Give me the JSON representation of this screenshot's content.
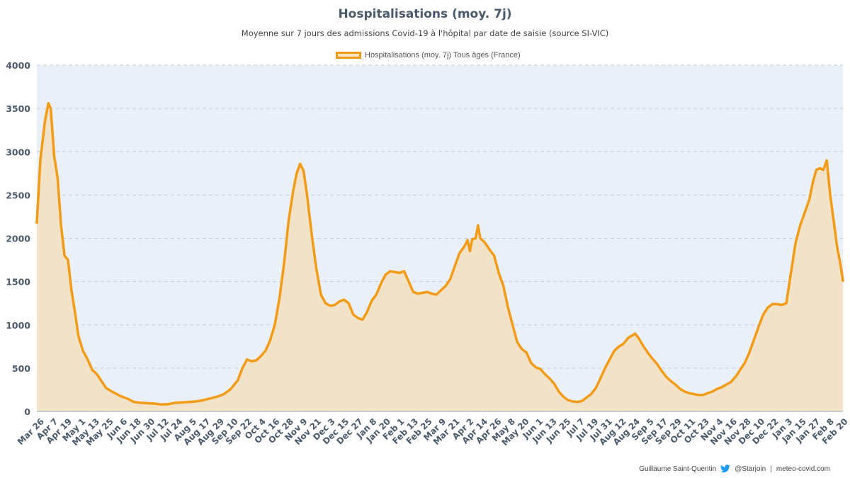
{
  "chart_data": {
    "type": "area",
    "title": "Hospitalisations (moy. 7j)",
    "subtitle": "Moyenne sur 7 jours des admissions Covid-19 à l'hôpital par date de saisie (source SI-VIC)",
    "series": [
      {
        "name": "Hospitalisations (moy. 7j) Tous âges (France)",
        "color": "#f29b16",
        "fill": "#f2e2c8",
        "points": [
          [
            "2020-03-26",
            2180
          ],
          [
            "2020-03-29",
            2900
          ],
          [
            "2020-04-02",
            3350
          ],
          [
            "2020-04-05",
            3560
          ],
          [
            "2020-04-07",
            3500
          ],
          [
            "2020-04-10",
            2950
          ],
          [
            "2020-04-13",
            2700
          ],
          [
            "2020-04-16",
            2150
          ],
          [
            "2020-04-19",
            1800
          ],
          [
            "2020-04-22",
            1750
          ],
          [
            "2020-04-25",
            1400
          ],
          [
            "2020-04-28",
            1150
          ],
          [
            "2020-05-01",
            870
          ],
          [
            "2020-05-05",
            700
          ],
          [
            "2020-05-09",
            600
          ],
          [
            "2020-05-13",
            480
          ],
          [
            "2020-05-17",
            430
          ],
          [
            "2020-05-21",
            350
          ],
          [
            "2020-05-25",
            270
          ],
          [
            "2020-05-30",
            230
          ],
          [
            "2020-06-06",
            180
          ],
          [
            "2020-06-12",
            150
          ],
          [
            "2020-06-18",
            110
          ],
          [
            "2020-06-24",
            100
          ],
          [
            "2020-06-30",
            95
          ],
          [
            "2020-07-06",
            90
          ],
          [
            "2020-07-12",
            80
          ],
          [
            "2020-07-18",
            85
          ],
          [
            "2020-07-24",
            100
          ],
          [
            "2020-07-30",
            105
          ],
          [
            "2020-08-05",
            110
          ],
          [
            "2020-08-11",
            115
          ],
          [
            "2020-08-17",
            130
          ],
          [
            "2020-08-23",
            150
          ],
          [
            "2020-08-29",
            170
          ],
          [
            "2020-09-04",
            200
          ],
          [
            "2020-09-10",
            260
          ],
          [
            "2020-09-16",
            360
          ],
          [
            "2020-09-20",
            500
          ],
          [
            "2020-09-24",
            600
          ],
          [
            "2020-09-28",
            580
          ],
          [
            "2020-10-02",
            590
          ],
          [
            "2020-10-06",
            640
          ],
          [
            "2020-10-10",
            700
          ],
          [
            "2020-10-14",
            820
          ],
          [
            "2020-10-18",
            1000
          ],
          [
            "2020-10-22",
            1300
          ],
          [
            "2020-10-26",
            1700
          ],
          [
            "2020-10-30",
            2200
          ],
          [
            "2020-11-03",
            2550
          ],
          [
            "2020-11-06",
            2750
          ],
          [
            "2020-11-09",
            2860
          ],
          [
            "2020-11-12",
            2780
          ],
          [
            "2020-11-15",
            2500
          ],
          [
            "2020-11-19",
            2050
          ],
          [
            "2020-11-23",
            1650
          ],
          [
            "2020-11-27",
            1350
          ],
          [
            "2020-12-01",
            1250
          ],
          [
            "2020-12-05",
            1220
          ],
          [
            "2020-12-09",
            1230
          ],
          [
            "2020-12-13",
            1270
          ],
          [
            "2020-12-17",
            1290
          ],
          [
            "2020-12-21",
            1250
          ],
          [
            "2020-12-25",
            1120
          ],
          [
            "2020-12-29",
            1080
          ],
          [
            "2021-01-02",
            1060
          ],
          [
            "2021-01-06",
            1150
          ],
          [
            "2021-01-10",
            1280
          ],
          [
            "2021-01-14",
            1350
          ],
          [
            "2021-01-18",
            1480
          ],
          [
            "2021-01-22",
            1580
          ],
          [
            "2021-01-26",
            1620
          ],
          [
            "2021-01-30",
            1610
          ],
          [
            "2021-02-03",
            1600
          ],
          [
            "2021-02-07",
            1620
          ],
          [
            "2021-02-11",
            1500
          ],
          [
            "2021-02-15",
            1380
          ],
          [
            "2021-02-19",
            1360
          ],
          [
            "2021-02-23",
            1370
          ],
          [
            "2021-02-27",
            1380
          ],
          [
            "2021-03-03",
            1360
          ],
          [
            "2021-03-07",
            1350
          ],
          [
            "2021-03-11",
            1400
          ],
          [
            "2021-03-15",
            1450
          ],
          [
            "2021-03-19",
            1530
          ],
          [
            "2021-03-23",
            1680
          ],
          [
            "2021-03-27",
            1830
          ],
          [
            "2021-03-31",
            1900
          ],
          [
            "2021-04-03",
            1980
          ],
          [
            "2021-04-05",
            1850
          ],
          [
            "2021-04-07",
            1990
          ],
          [
            "2021-04-10",
            2000
          ],
          [
            "2021-04-12",
            2150
          ],
          [
            "2021-04-14",
            2000
          ],
          [
            "2021-04-18",
            1950
          ],
          [
            "2021-04-22",
            1870
          ],
          [
            "2021-04-26",
            1800
          ],
          [
            "2021-04-30",
            1600
          ],
          [
            "2021-05-04",
            1450
          ],
          [
            "2021-05-08",
            1200
          ],
          [
            "2021-05-12",
            1000
          ],
          [
            "2021-05-16",
            800
          ],
          [
            "2021-05-20",
            720
          ],
          [
            "2021-05-24",
            680
          ],
          [
            "2021-05-28",
            560
          ],
          [
            "2021-06-01",
            510
          ],
          [
            "2021-06-05",
            490
          ],
          [
            "2021-06-09",
            430
          ],
          [
            "2021-06-13",
            380
          ],
          [
            "2021-06-17",
            320
          ],
          [
            "2021-06-21",
            230
          ],
          [
            "2021-06-25",
            170
          ],
          [
            "2021-06-29",
            130
          ],
          [
            "2021-07-03",
            115
          ],
          [
            "2021-07-07",
            110
          ],
          [
            "2021-07-11",
            120
          ],
          [
            "2021-07-15",
            160
          ],
          [
            "2021-07-19",
            200
          ],
          [
            "2021-07-23",
            270
          ],
          [
            "2021-07-27",
            380
          ],
          [
            "2021-07-31",
            500
          ],
          [
            "2021-08-04",
            600
          ],
          [
            "2021-08-08",
            700
          ],
          [
            "2021-08-12",
            750
          ],
          [
            "2021-08-16",
            780
          ],
          [
            "2021-08-20",
            850
          ],
          [
            "2021-08-24",
            880
          ],
          [
            "2021-08-26",
            900
          ],
          [
            "2021-08-29",
            850
          ],
          [
            "2021-09-02",
            760
          ],
          [
            "2021-09-06",
            680
          ],
          [
            "2021-09-10",
            610
          ],
          [
            "2021-09-14",
            550
          ],
          [
            "2021-09-18",
            470
          ],
          [
            "2021-09-22",
            400
          ],
          [
            "2021-09-26",
            350
          ],
          [
            "2021-09-30",
            310
          ],
          [
            "2021-10-04",
            260
          ],
          [
            "2021-10-08",
            230
          ],
          [
            "2021-10-12",
            210
          ],
          [
            "2021-10-16",
            200
          ],
          [
            "2021-10-20",
            190
          ],
          [
            "2021-10-24",
            190
          ],
          [
            "2021-10-28",
            210
          ],
          [
            "2021-11-01",
            230
          ],
          [
            "2021-11-05",
            260
          ],
          [
            "2021-11-09",
            280
          ],
          [
            "2021-11-13",
            310
          ],
          [
            "2021-11-17",
            340
          ],
          [
            "2021-11-21",
            400
          ],
          [
            "2021-11-25",
            480
          ],
          [
            "2021-11-29",
            560
          ],
          [
            "2021-12-03",
            680
          ],
          [
            "2021-12-07",
            830
          ],
          [
            "2021-12-11",
            980
          ],
          [
            "2021-12-15",
            1120
          ],
          [
            "2021-12-19",
            1200
          ],
          [
            "2021-12-23",
            1240
          ],
          [
            "2021-12-27",
            1240
          ],
          [
            "2021-12-31",
            1230
          ],
          [
            "2022-01-04",
            1250
          ],
          [
            "2022-01-08",
            1600
          ],
          [
            "2022-01-12",
            1950
          ],
          [
            "2022-01-16",
            2150
          ],
          [
            "2022-01-20",
            2300
          ],
          [
            "2022-01-24",
            2450
          ],
          [
            "2022-01-27",
            2650
          ],
          [
            "2022-01-30",
            2790
          ],
          [
            "2022-02-02",
            2810
          ],
          [
            "2022-02-05",
            2790
          ],
          [
            "2022-02-08",
            2900
          ],
          [
            "2022-02-11",
            2500
          ],
          [
            "2022-02-14",
            2200
          ],
          [
            "2022-02-17",
            1900
          ],
          [
            "2022-02-20",
            1690
          ],
          [
            "2022-02-22",
            1510
          ]
        ]
      }
    ],
    "x_range": [
      "2020-03-26",
      "2022-02-22"
    ],
    "x_tick_start": "2020-03-26",
    "x_tick_step_days": 12,
    "y_ticks": [
      0,
      500,
      1000,
      1500,
      2000,
      2500,
      3000,
      3500,
      4000
    ],
    "ylim": [
      0,
      4000
    ],
    "grid": true,
    "legend_position": "top-center",
    "colors": {
      "plot_background": "#eaf0f7",
      "grid": "#c5ccd6"
    }
  },
  "credits": {
    "author": "Guillaume Saint-Quentin",
    "twitter": "@Starjoin",
    "site": "meteo-covid.com"
  },
  "icons": {
    "social": "twitter-bird-icon"
  }
}
